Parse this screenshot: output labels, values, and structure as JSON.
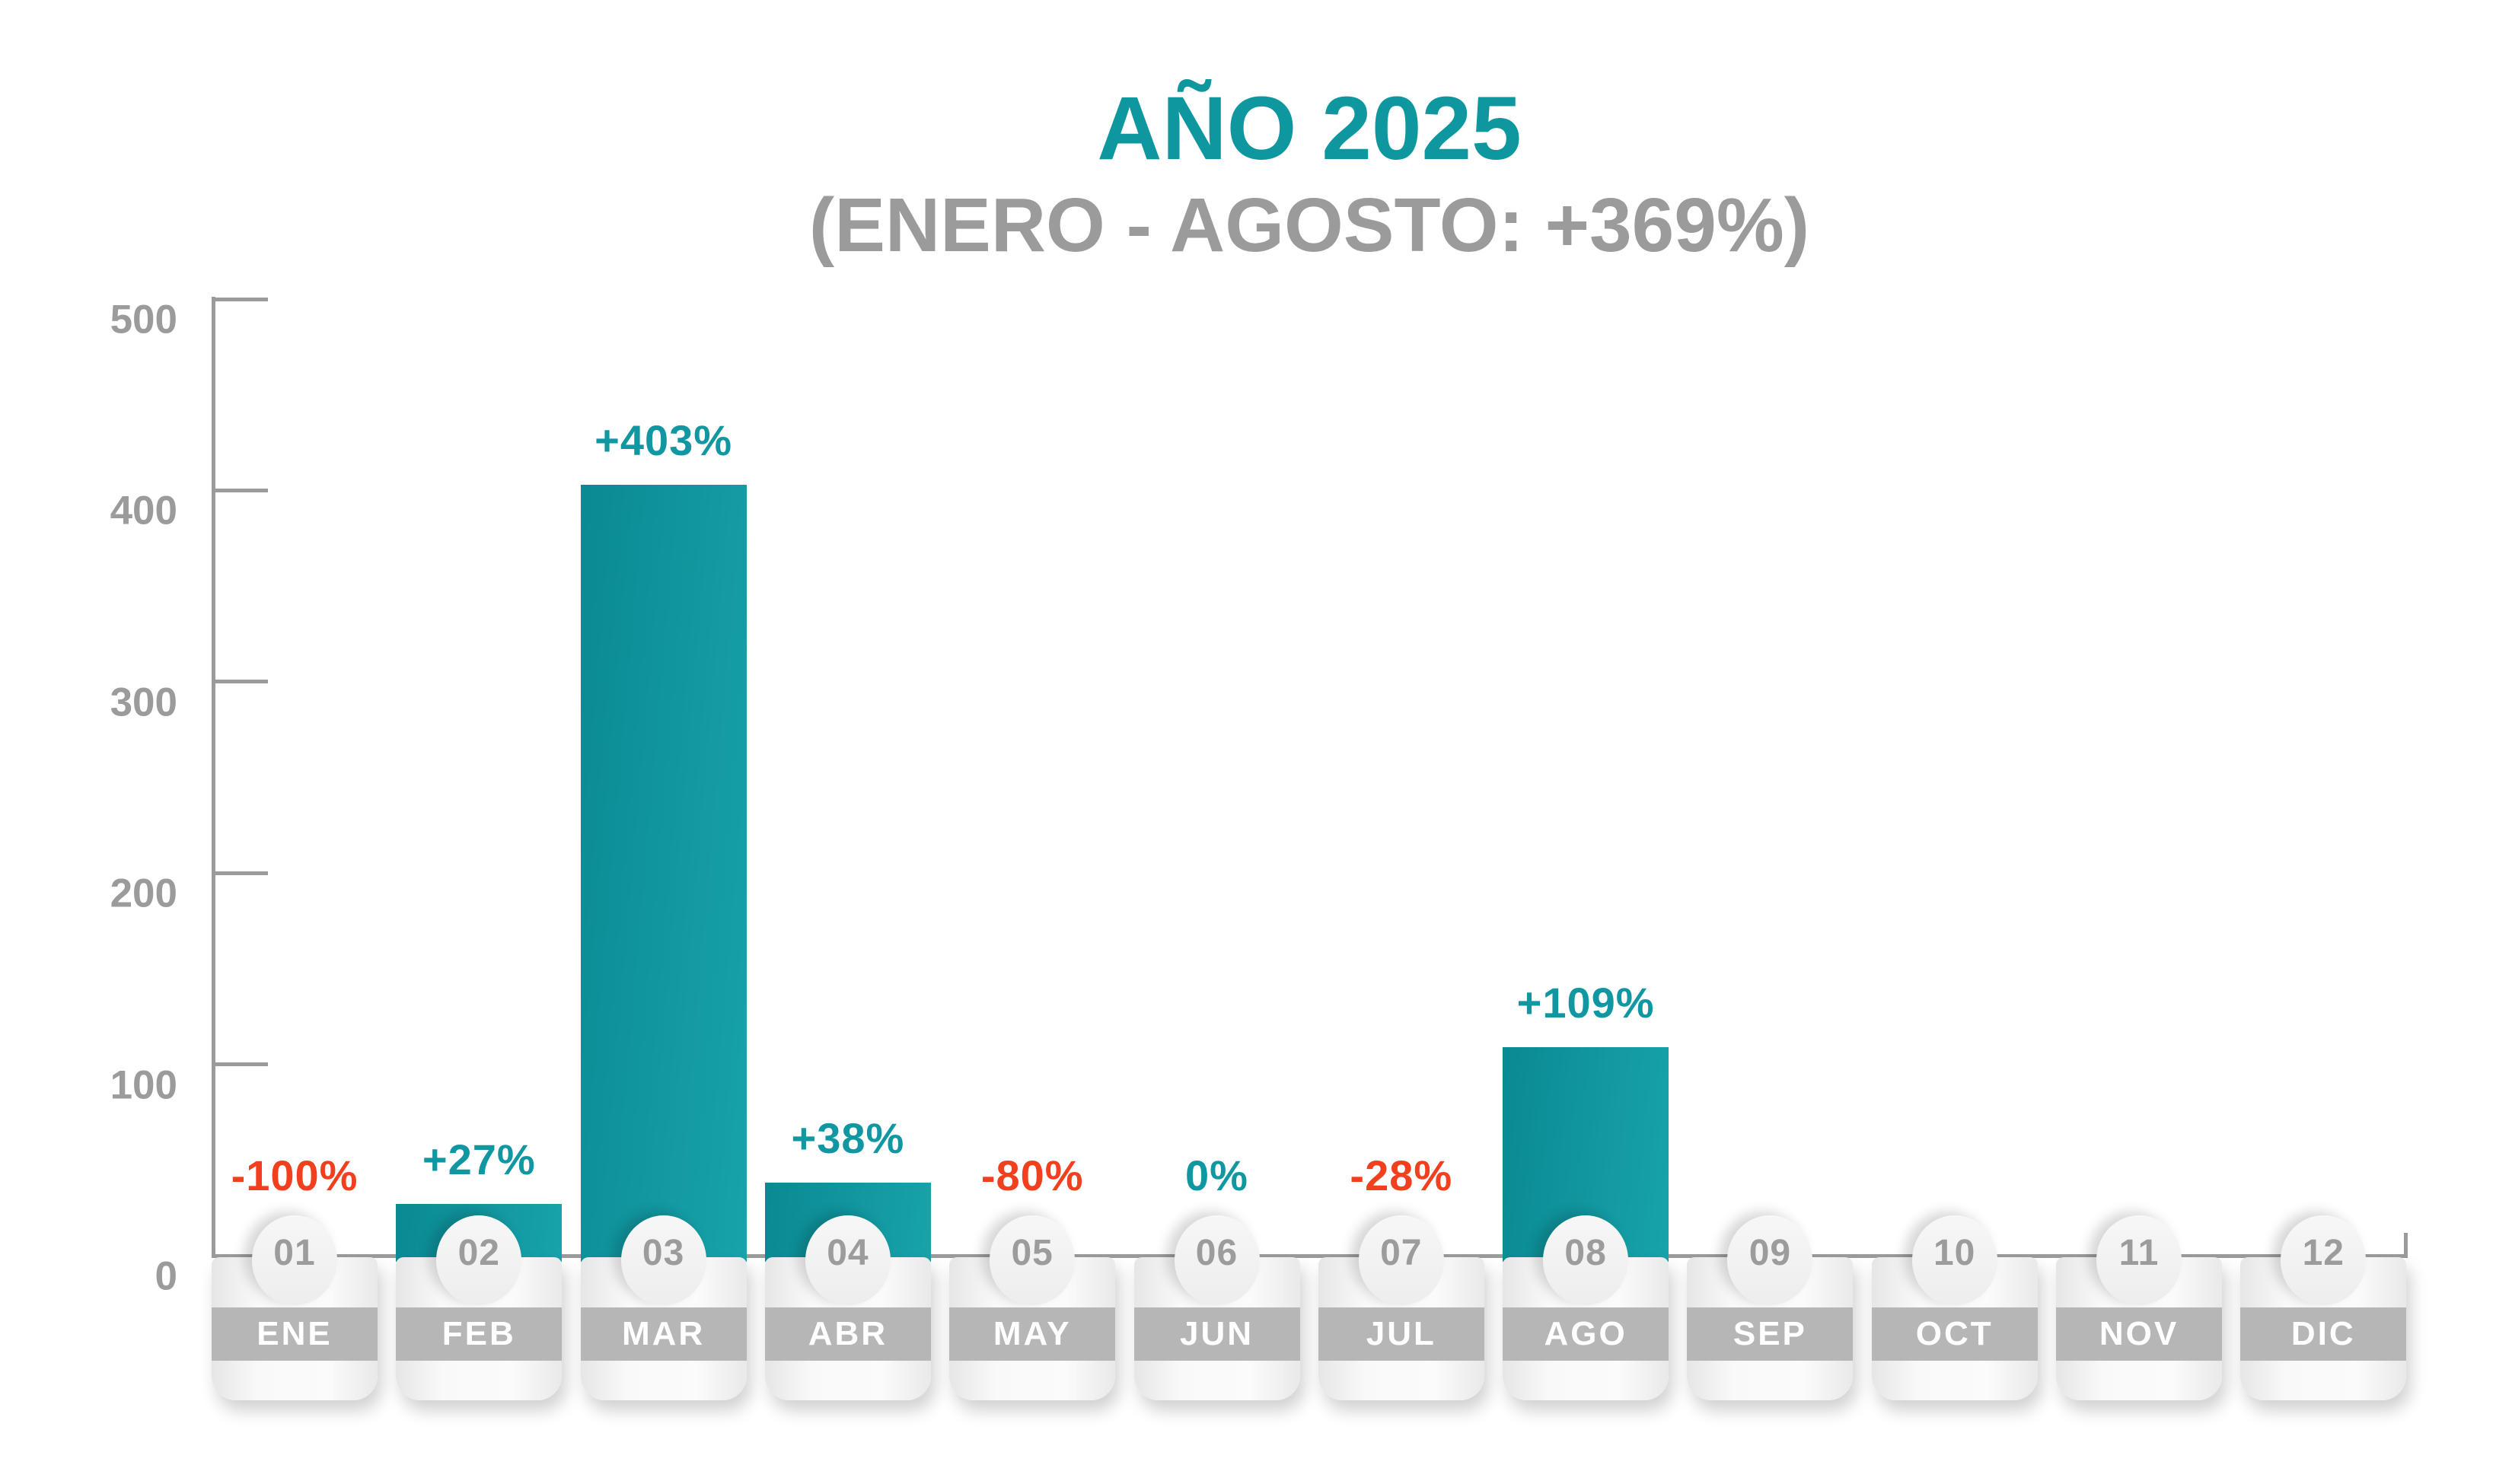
{
  "title": "AÑO 2025",
  "subtitle": "(ENERO - AGOSTO: +369%)",
  "colors": {
    "accent_teal": "#0e979e",
    "negative_red": "#f23f1d",
    "axis_gray": "#9b9b9b",
    "band_gray": "#b6b6b6",
    "bar_gradient_start": "#0a8a93",
    "bar_gradient_end": "#18a2aa"
  },
  "chart_data": {
    "type": "bar",
    "title": "AÑO 2025",
    "subtitle": "(ENERO - AGOSTO: +369%)",
    "xlabel": "",
    "ylabel": "",
    "ylim": [
      0,
      500
    ],
    "yticks": [
      0,
      100,
      200,
      300,
      400,
      500
    ],
    "grid": false,
    "legend": false,
    "categories": [
      "ENE",
      "FEB",
      "MAR",
      "ABR",
      "MAY",
      "JUN",
      "JUL",
      "AGO",
      "SEP",
      "OCT",
      "NOV",
      "DIC"
    ],
    "months": [
      {
        "num": "01",
        "name": "ENE",
        "value": 0,
        "pct": "-100%",
        "direction": "down"
      },
      {
        "num": "02",
        "name": "FEB",
        "value": 27,
        "pct": "+27%",
        "direction": "up"
      },
      {
        "num": "03",
        "name": "MAR",
        "value": 403,
        "pct": "+403%",
        "direction": "up"
      },
      {
        "num": "04",
        "name": "ABR",
        "value": 38,
        "pct": "+38%",
        "direction": "up"
      },
      {
        "num": "05",
        "name": "MAY",
        "value": 0,
        "pct": "-80%",
        "direction": "down"
      },
      {
        "num": "06",
        "name": "JUN",
        "value": 0,
        "pct": "0%",
        "direction": "up"
      },
      {
        "num": "07",
        "name": "JUL",
        "value": 0,
        "pct": "-28%",
        "direction": "down"
      },
      {
        "num": "08",
        "name": "AGO",
        "value": 109,
        "pct": "+109%",
        "direction": "up"
      },
      {
        "num": "09",
        "name": "SEP",
        "value": null,
        "pct": "",
        "direction": "none"
      },
      {
        "num": "10",
        "name": "OCT",
        "value": null,
        "pct": "",
        "direction": "none"
      },
      {
        "num": "11",
        "name": "NOV",
        "value": null,
        "pct": "",
        "direction": "none"
      },
      {
        "num": "12",
        "name": "DIC",
        "value": null,
        "pct": "",
        "direction": "none"
      }
    ]
  }
}
